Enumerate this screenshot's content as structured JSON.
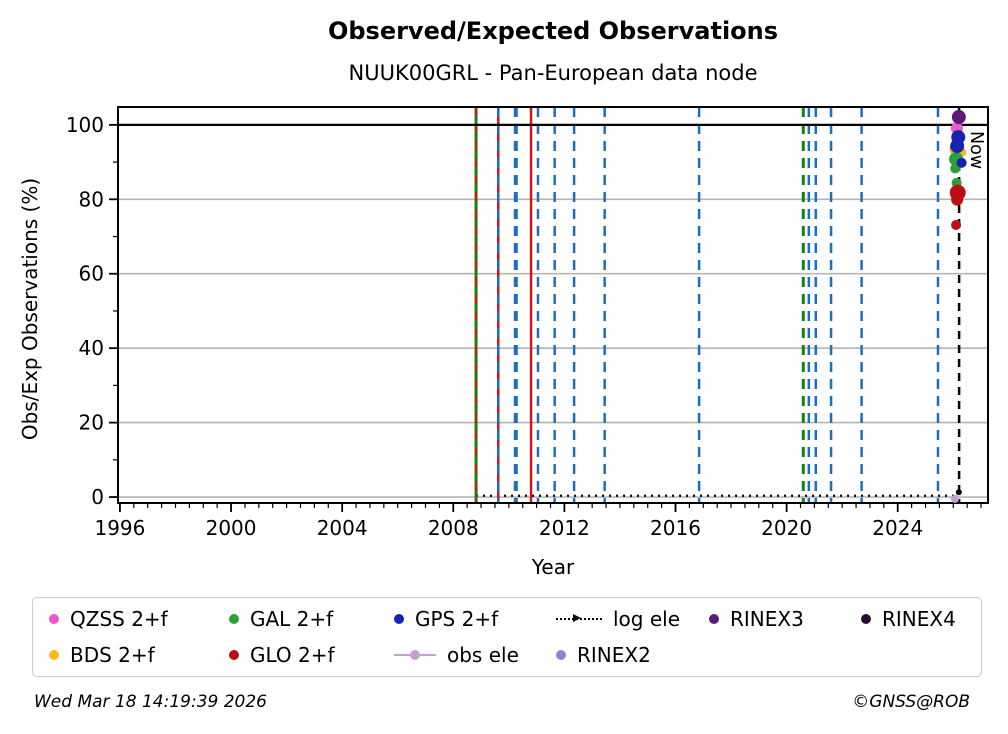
{
  "header": {
    "title": "Observed/Expected Observations",
    "subtitle": "NUUK00GRL - Pan-European data node"
  },
  "footer": {
    "timestamp": "Wed Mar 18 14:19:39 2026",
    "credit": "©GNSS@ROB"
  },
  "legend": {
    "items": [
      {
        "label": "QZSS 2+f",
        "marker": "dot",
        "color": "#ee59c8"
      },
      {
        "label": "GAL 2+f",
        "marker": "dot",
        "color": "#2e9e3c"
      },
      {
        "label": "GPS 2+f",
        "marker": "dot",
        "color": "#1722ae"
      },
      {
        "label": "log ele",
        "marker": "dotline",
        "color": "#000000"
      },
      {
        "label": "RINEX3",
        "marker": "dot",
        "color": "#5e1a78"
      },
      {
        "label": "RINEX4",
        "marker": "dot",
        "color": "#2b0b33"
      },
      {
        "label": "BDS 2+f",
        "marker": "dot",
        "color": "#fcb81e"
      },
      {
        "label": "GLO 2+f",
        "marker": "dot",
        "color": "#bb0e15"
      },
      {
        "label": "obs ele",
        "marker": "linedot",
        "color": "#c79ed6"
      },
      {
        "label": "RINEX2",
        "marker": "dot",
        "color": "#8787d8"
      }
    ]
  },
  "chart_data": {
    "type": "scatter",
    "title": "Observed/Expected Observations",
    "subtitle": "NUUK00GRL - Pan-European data node",
    "xlabel": "Year",
    "ylabel": "Obs/Exp Observations (%)",
    "xlim": [
      1995.93,
      2027.25
    ],
    "ylim": [
      -1.6,
      104.8
    ],
    "xticks": [
      1996,
      2000,
      2004,
      2008,
      2012,
      2016,
      2020,
      2024
    ],
    "yticks": [
      0,
      20,
      40,
      60,
      80,
      100
    ],
    "x_minor_step": 0.5,
    "y_minor_step": 10,
    "grid_y_values": [
      0,
      20,
      40,
      60,
      80
    ],
    "grid_color": "#b5b5b5",
    "hline_100": {
      "y": 100,
      "color": "#000000"
    },
    "log_ele_line": {
      "y": 0.35,
      "x_start": 2008.82,
      "x_end": 2026.21,
      "color": "#000000"
    },
    "now_line": {
      "x": 2026.21,
      "label": "Now",
      "color": "#000000",
      "style": "dashed"
    },
    "vlines": [
      {
        "x": 2008.82,
        "color": "#128312",
        "style": "solid",
        "width": 3
      },
      {
        "x": 2008.82,
        "color": "#cf1717",
        "style": "dashed",
        "width": 2
      },
      {
        "x": 2009.62,
        "color": "#cf1717",
        "style": "solid",
        "width": 2.5
      },
      {
        "x": 2009.62,
        "color": "#1a6fc4",
        "style": "dashed",
        "width": 2.5
      },
      {
        "x": 2010.25,
        "color": "#1a6fc4",
        "style": "dashed",
        "width": 4
      },
      {
        "x": 2010.8,
        "color": "#cf1717",
        "style": "solid",
        "width": 2.5
      },
      {
        "x": 2011.05,
        "color": "#1a6fc4",
        "style": "dashed",
        "width": 2.5
      },
      {
        "x": 2011.65,
        "color": "#1a6fc4",
        "style": "dashed",
        "width": 2.5
      },
      {
        "x": 2012.35,
        "color": "#1a6fc4",
        "style": "dashed",
        "width": 2.5
      },
      {
        "x": 2013.45,
        "color": "#1a6fc4",
        "style": "dashed",
        "width": 2.5
      },
      {
        "x": 2016.85,
        "color": "#1a6fc4",
        "style": "dashed",
        "width": 2.5
      },
      {
        "x": 2020.6,
        "color": "#128312",
        "style": "dashed",
        "width": 3
      },
      {
        "x": 2020.8,
        "color": "#1a6fc4",
        "style": "dashed",
        "width": 2.5
      },
      {
        "x": 2021.05,
        "color": "#1a6fc4",
        "style": "dashed",
        "width": 2.5
      },
      {
        "x": 2021.6,
        "color": "#1a6fc4",
        "style": "dashed",
        "width": 2.5
      },
      {
        "x": 2022.7,
        "color": "#1a6fc4",
        "style": "dashed",
        "width": 2.5
      },
      {
        "x": 2025.45,
        "color": "#1a6fc4",
        "style": "dashed",
        "width": 2.5
      }
    ],
    "series": [
      {
        "name": "obs ele",
        "color": "#c79ed6",
        "points": [
          [
            2026.06,
            -0.5,
            4
          ]
        ]
      },
      {
        "name": "log ele",
        "color": "#000000",
        "points": [
          [
            2026.2,
            1.3,
            3
          ]
        ]
      },
      {
        "name": "BDS 2+f",
        "color": "#fcb81e",
        "points": [
          [
            2026.08,
            93.3,
            6
          ],
          [
            2026.33,
            92.6,
            4
          ]
        ]
      },
      {
        "name": "QZSS 2+f",
        "color": "#ee59c8",
        "points": [
          [
            2026.13,
            99.1,
            6
          ]
        ]
      },
      {
        "name": "GAL 2+f",
        "color": "#2e9e3c",
        "points": [
          [
            2026.1,
            90.8,
            7
          ],
          [
            2026.07,
            88.3,
            5
          ],
          [
            2026.12,
            84.4,
            5
          ]
        ]
      },
      {
        "name": "GPS 2+f",
        "color": "#1722ae",
        "points": [
          [
            2026.18,
            96.7,
            7
          ],
          [
            2026.14,
            94.3,
            7
          ],
          [
            2026.3,
            89.8,
            5
          ]
        ]
      },
      {
        "name": "GLO 2+f",
        "color": "#bb0e15",
        "points": [
          [
            2026.16,
            81.8,
            8
          ],
          [
            2026.14,
            79.9,
            6
          ],
          [
            2026.1,
            73.1,
            5
          ]
        ]
      },
      {
        "name": "RINEX3",
        "color": "#5e1a78",
        "points": [
          [
            2026.2,
            102.1,
            7
          ]
        ]
      }
    ],
    "legend_entries": [
      "QZSS 2+f",
      "GAL 2+f",
      "GPS 2+f",
      "log ele",
      "RINEX3",
      "RINEX4",
      "BDS 2+f",
      "GLO 2+f",
      "obs ele",
      "RINEX2"
    ],
    "legend_position": "bottom",
    "grid": "horizontal-only"
  }
}
